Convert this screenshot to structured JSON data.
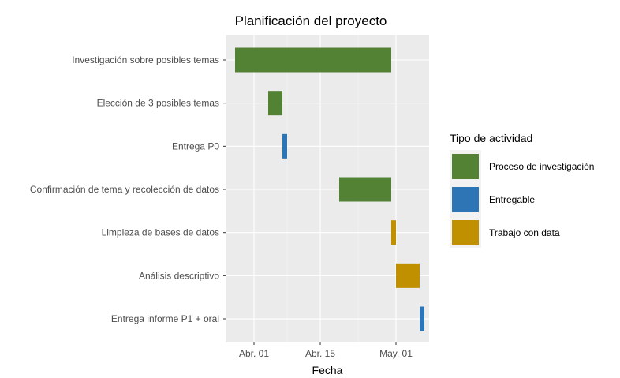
{
  "chart_data": {
    "type": "gantt",
    "title": "Planificación del proyecto",
    "xlabel": "Fecha",
    "ylabel": "",
    "x_ticks": [
      {
        "date": "2023-04-01",
        "label": "Abr. 01"
      },
      {
        "date": "2023-04-15",
        "label": "Abr. 15"
      },
      {
        "date": "2023-05-01",
        "label": "May. 01"
      }
    ],
    "xlim": [
      "2023-03-26",
      "2023-05-08"
    ],
    "grid": true,
    "legend_position": "right",
    "legend_title": "Tipo de actividad",
    "categories": [
      {
        "name": "Proceso de investigación",
        "color": "#548235"
      },
      {
        "name": "Entregable",
        "color": "#2E75B6"
      },
      {
        "name": "Trabajo con data",
        "color": "#C09000"
      }
    ],
    "tasks": [
      {
        "label": "Investigación sobre posibles temas",
        "start": "2023-03-28",
        "end": "2023-04-30",
        "category": "Proceso de investigación"
      },
      {
        "label": "Elección de 3 posibles temas",
        "start": "2023-04-04",
        "end": "2023-04-07",
        "category": "Proceso de investigación"
      },
      {
        "label": "Entrega P0",
        "start": "2023-04-07",
        "end": "2023-04-08",
        "category": "Entregable"
      },
      {
        "label": "Confirmación de tema y recolección de datos",
        "start": "2023-04-19",
        "end": "2023-04-30",
        "category": "Proceso de investigación"
      },
      {
        "label": "Limpieza de bases de datos",
        "start": "2023-04-30",
        "end": "2023-05-01",
        "category": "Trabajo con data"
      },
      {
        "label": "Análisis descriptivo",
        "start": "2023-05-01",
        "end": "2023-05-06",
        "category": "Trabajo con data"
      },
      {
        "label": "Entrega informe P1 + oral",
        "start": "2023-05-06",
        "end": "2023-05-07",
        "category": "Entregable"
      }
    ]
  }
}
